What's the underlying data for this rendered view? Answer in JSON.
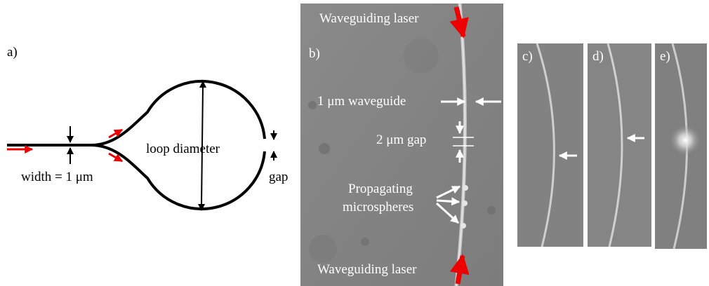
{
  "panels": {
    "a": "a)",
    "b": "b)",
    "c": "c)",
    "d": "d)",
    "e": "e)"
  },
  "panel_a": {
    "width_label": "width = 1 μm",
    "diameter_label": "loop diameter",
    "gap_label": "gap"
  },
  "panel_b": {
    "top_label": "Waveguiding laser",
    "waveguide_label": "1 μm waveguide",
    "gap_label": "2 μm gap",
    "spheres_label": [
      "Propagating",
      "microspheres"
    ],
    "bottom_label": "Waveguiding laser"
  }
}
